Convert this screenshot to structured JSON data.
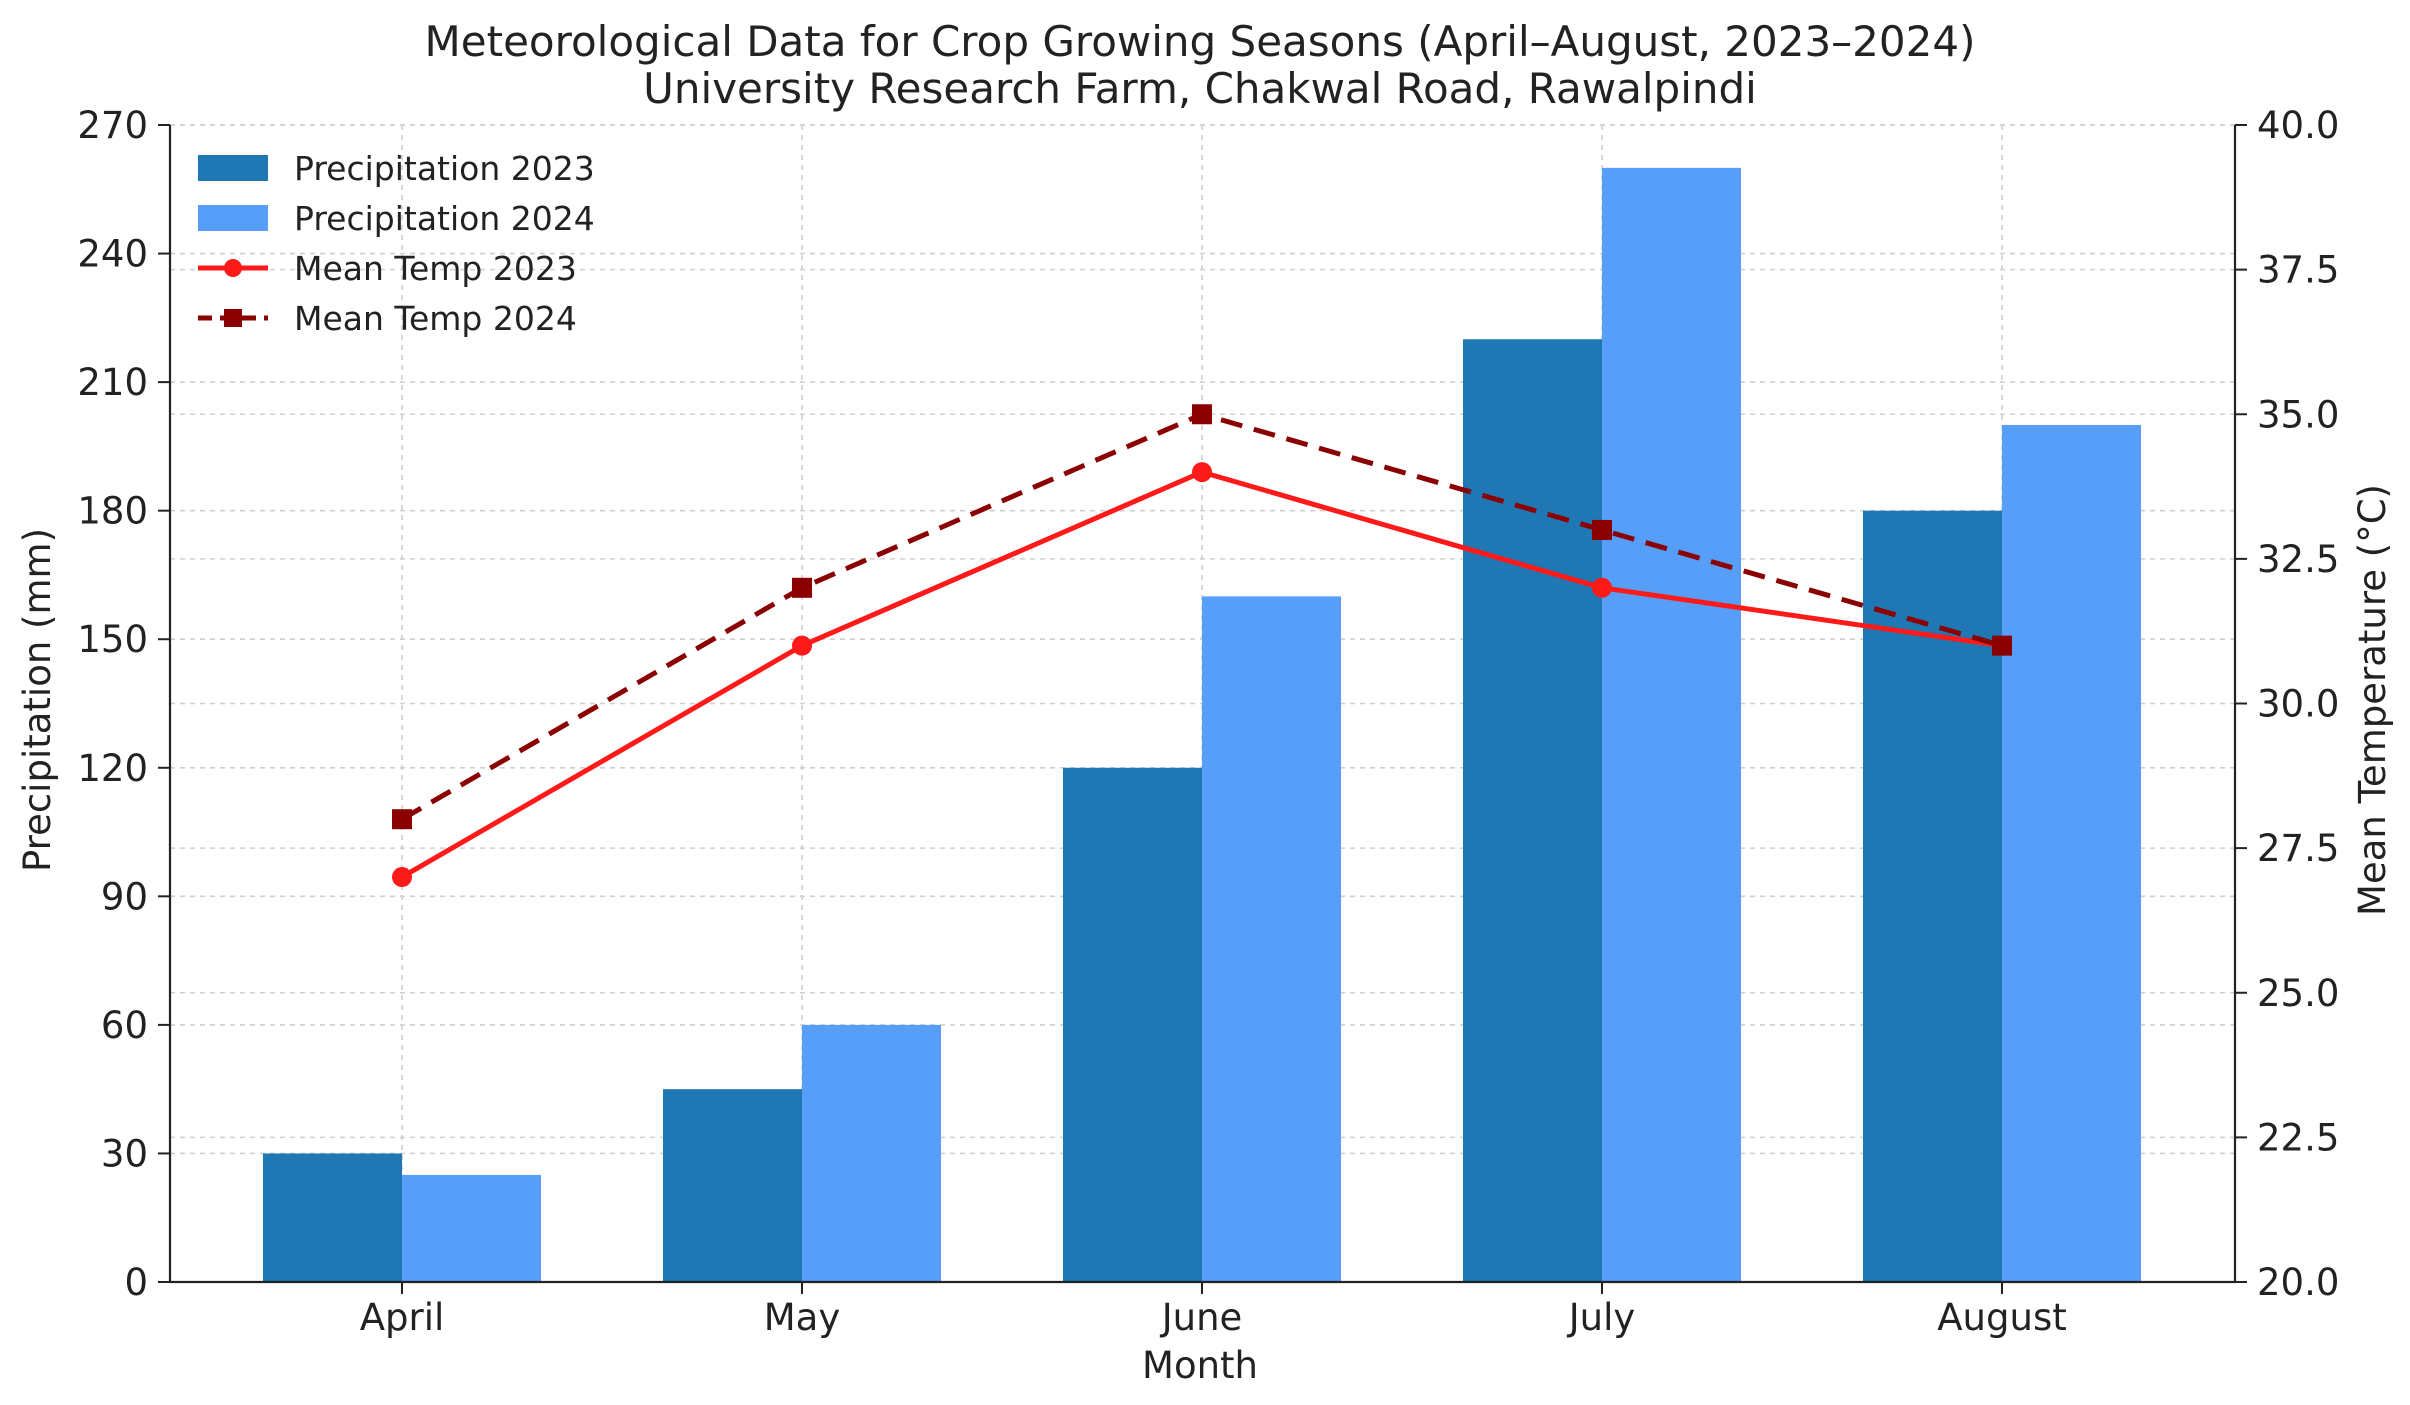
{
  "chart_data": {
    "type": "bar",
    "title": "Meteorological Data for Crop Growing Seasons (April–August, 2023–2024)",
    "subtitle": "University Research Farm, Chakwal Road, Rawalpindi",
    "xlabel": "Month",
    "ylabel": "Precipitation (mm)",
    "y2label": "Mean Temperature (°C)",
    "categories": [
      "April",
      "May",
      "June",
      "July",
      "August"
    ],
    "ylim": [
      0,
      270
    ],
    "yticks": [
      0,
      30,
      60,
      90,
      120,
      150,
      180,
      210,
      240,
      270
    ],
    "y2lim": [
      20.0,
      40.0
    ],
    "y2ticks": [
      "20.0",
      "22.5",
      "25.0",
      "27.5",
      "30.0",
      "32.5",
      "35.0",
      "37.5",
      "40.0"
    ],
    "grid": true,
    "legend_position": "top-left",
    "bar_series": [
      {
        "name": "Precipitation 2023",
        "color": "#1f77b4",
        "values": [
          30,
          45,
          120,
          220,
          180
        ]
      },
      {
        "name": "Precipitation 2024",
        "color": "#569ef7",
        "values": [
          25,
          60,
          160,
          260,
          200
        ]
      }
    ],
    "line_series": [
      {
        "name": "Mean Temp 2023",
        "color": "#ff1a1a",
        "style": "solid",
        "marker": "circle",
        "axis": "right",
        "values": [
          27,
          31,
          34,
          32,
          31
        ]
      },
      {
        "name": "Mean Temp 2024",
        "color": "#8b0000",
        "style": "dashed",
        "marker": "square",
        "axis": "right",
        "values": [
          28,
          32,
          35,
          33,
          31
        ]
      }
    ]
  }
}
